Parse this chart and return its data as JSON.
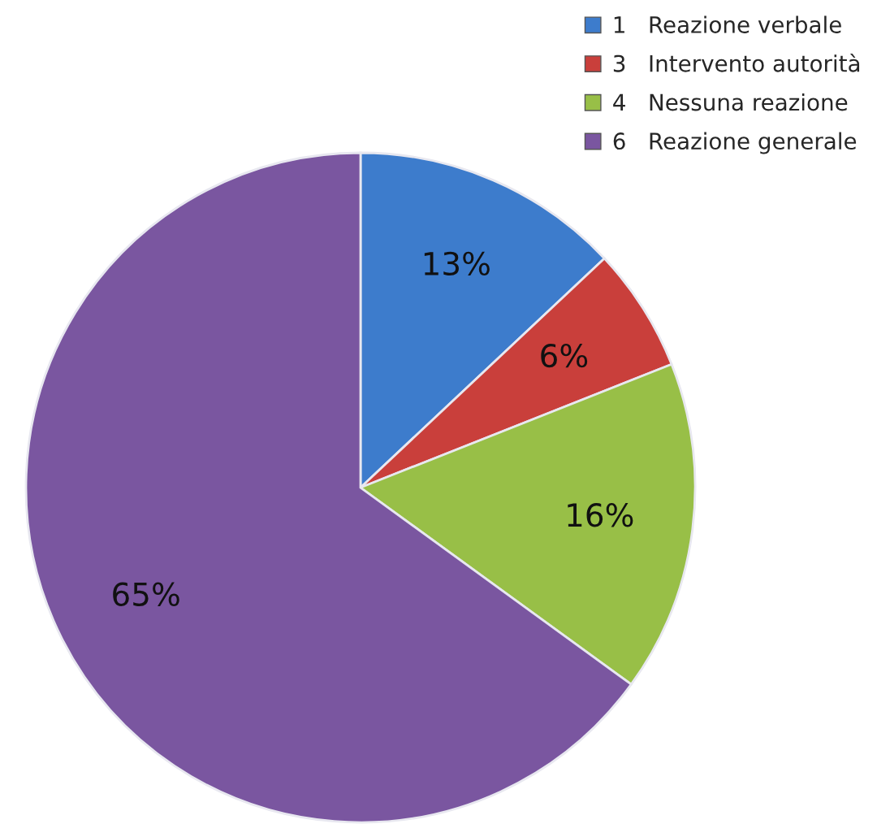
{
  "chart_data": {
    "type": "pie",
    "categories": [
      "1   Reazione verbale",
      "3   Intervento autorità",
      "4   Nessuna reazione",
      "6   Reazione generale"
    ],
    "values": [
      13,
      6,
      16,
      65
    ],
    "value_labels": [
      "13%",
      "6%",
      "16%",
      "65%"
    ],
    "colors": [
      "#3d7ccc",
      "#c93f3b",
      "#98bf47",
      "#7a56a0"
    ],
    "legend": "top right"
  }
}
